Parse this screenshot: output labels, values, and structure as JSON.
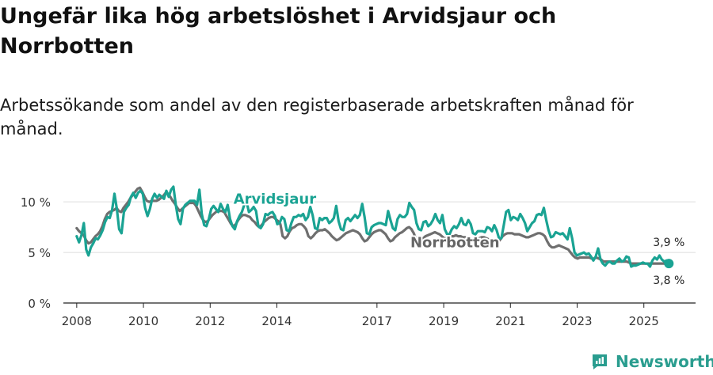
{
  "header": {
    "title": "Ungefär lika hög arbetslöshet i Arvidsjaur och Norrbotten",
    "subtitle": "Arbetssökande som andel av den registerbaserade arbetskraften månad för månad."
  },
  "brand": {
    "name": "Newsworthy",
    "color": "#2a9d8f"
  },
  "chart_data": {
    "type": "line",
    "title": "Ungefär lika hög arbetslöshet i Arvidsjaur och Norrbotten",
    "subtitle": "Arbetssökande som andel av den registerbaserade arbetskraften månad för månad.",
    "xlabel": "",
    "ylabel": "",
    "x_range": [
      2008.0,
      2025.75
    ],
    "xlim": [
      2007.6,
      2026.55
    ],
    "ylim": [
      0,
      11.5
    ],
    "y_ticks": [
      {
        "value": 0,
        "label": "0 %"
      },
      {
        "value": 5,
        "label": "5 %"
      },
      {
        "value": 10,
        "label": "10 %"
      }
    ],
    "x_ticks": [
      {
        "value": 2008,
        "label": "2008"
      },
      {
        "value": 2010,
        "label": "2010"
      },
      {
        "value": 2012,
        "label": "2012"
      },
      {
        "value": 2014,
        "label": "2014"
      },
      {
        "value": 2017,
        "label": "2017"
      },
      {
        "value": 2019,
        "label": "2019"
      },
      {
        "value": 2021,
        "label": "2021"
      },
      {
        "value": 2023,
        "label": "2023"
      },
      {
        "value": 2025,
        "label": "2025"
      }
    ],
    "grid": true,
    "legend": "inline",
    "series": [
      {
        "name": "Arvidsjaur",
        "color": "#1aa393",
        "end_label": "3,9 %",
        "values": [
          6.6,
          6.0,
          6.7,
          7.9,
          5.3,
          4.7,
          5.5,
          5.9,
          6.4,
          6.3,
          6.7,
          7.2,
          8.0,
          8.5,
          8.4,
          9.2,
          10.8,
          9.3,
          7.3,
          6.9,
          9.0,
          9.4,
          9.7,
          10.5,
          10.9,
          10.4,
          10.9,
          11.1,
          10.8,
          9.4,
          8.6,
          9.3,
          10.3,
          10.8,
          10.4,
          10.7,
          10.5,
          10.3,
          11.1,
          10.5,
          11.2,
          11.5,
          9.7,
          8.3,
          7.8,
          9.3,
          9.7,
          9.9,
          10.1,
          10.1,
          10.1,
          9.7,
          11.2,
          8.8,
          7.7,
          7.6,
          8.3,
          9.3,
          9.6,
          9.3,
          9.0,
          9.8,
          9.3,
          9.0,
          9.7,
          8.3,
          7.6,
          7.3,
          8.1,
          8.6,
          9.0,
          9.7,
          10.0,
          9.0,
          9.2,
          9.5,
          9.1,
          7.6,
          7.4,
          7.8,
          8.8,
          8.7,
          8.9,
          9.0,
          8.6,
          7.8,
          7.9,
          8.5,
          8.3,
          7.2,
          7.1,
          7.9,
          8.5,
          8.5,
          8.7,
          8.6,
          8.8,
          8.2,
          8.5,
          9.5,
          8.7,
          7.4,
          7.3,
          8.4,
          8.2,
          8.4,
          8.4,
          7.9,
          8.1,
          8.4,
          9.6,
          8.1,
          7.3,
          7.2,
          8.2,
          8.4,
          8.1,
          8.4,
          8.7,
          8.4,
          8.7,
          9.8,
          8.5,
          6.9,
          6.8,
          7.5,
          7.7,
          7.8,
          7.9,
          7.9,
          7.8,
          7.7,
          9.1,
          8.2,
          7.4,
          7.2,
          8.3,
          8.7,
          8.5,
          8.5,
          8.8,
          9.9,
          9.5,
          9.2,
          7.9,
          7.3,
          7.2,
          8.0,
          8.1,
          7.6,
          7.8,
          8.2,
          8.8,
          8.2,
          7.9,
          8.7,
          7.3,
          6.8,
          6.8,
          7.3,
          7.6,
          7.4,
          7.8,
          8.4,
          7.8,
          7.7,
          8.2,
          7.8,
          6.9,
          6.8,
          7.1,
          7.1,
          7.1,
          7.0,
          7.5,
          7.4,
          7.1,
          7.7,
          7.2,
          6.4,
          6.4,
          7.7,
          9.0,
          9.2,
          8.2,
          8.5,
          8.4,
          8.2,
          8.8,
          8.4,
          7.9,
          7.1,
          7.5,
          7.9,
          8.1,
          8.7,
          8.8,
          8.7,
          9.4,
          8.2,
          7.2,
          6.5,
          6.6,
          7.0,
          6.9,
          6.8,
          6.9,
          6.6,
          6.3,
          7.4,
          6.4,
          5.0,
          4.7,
          4.8,
          4.9,
          5.0,
          4.8,
          4.9,
          4.6,
          4.2,
          4.6,
          5.4,
          4.3,
          3.9,
          3.7,
          4.0,
          4.1,
          3.9,
          3.9,
          4.2,
          4.4,
          4.1,
          4.2,
          4.6,
          4.5,
          3.6,
          3.7,
          3.7,
          3.8,
          3.9,
          4.0,
          3.9,
          3.9,
          3.6,
          4.2,
          4.5,
          4.3,
          4.7,
          4.3,
          4.1,
          4.2,
          3.9
        ]
      },
      {
        "name": "Norrbotten",
        "color": "#6f6f6f",
        "end_label": "3,8 %",
        "values": [
          7.4,
          7.1,
          6.9,
          6.7,
          6.2,
          5.9,
          6.0,
          6.3,
          6.6,
          6.8,
          7.1,
          7.6,
          8.3,
          8.8,
          9.0,
          9.1,
          9.2,
          9.4,
          9.1,
          9.0,
          9.4,
          9.7,
          10.0,
          10.4,
          10.7,
          11.0,
          11.3,
          11.4,
          11.0,
          10.5,
          10.1,
          10.0,
          10.1,
          10.1,
          10.1,
          10.2,
          10.4,
          10.6,
          10.9,
          10.8,
          10.5,
          10.1,
          9.8,
          9.4,
          9.1,
          9.3,
          9.5,
          9.7,
          9.9,
          9.9,
          9.9,
          9.6,
          9.1,
          8.6,
          8.2,
          8.0,
          8.1,
          8.4,
          8.7,
          8.9,
          9.1,
          9.1,
          9.1,
          9.0,
          8.6,
          8.2,
          7.8,
          7.6,
          7.8,
          8.2,
          8.5,
          8.7,
          8.7,
          8.6,
          8.5,
          8.2,
          8.0,
          7.7,
          7.5,
          7.7,
          8.0,
          8.2,
          8.4,
          8.5,
          8.5,
          8.3,
          8.1,
          7.8,
          6.6,
          6.4,
          6.6,
          7.1,
          7.4,
          7.5,
          7.7,
          7.8,
          7.8,
          7.6,
          7.3,
          6.6,
          6.4,
          6.6,
          6.9,
          7.1,
          7.2,
          7.2,
          7.3,
          7.1,
          6.9,
          6.6,
          6.4,
          6.2,
          6.3,
          6.5,
          6.7,
          6.9,
          7.0,
          7.1,
          7.2,
          7.1,
          7.0,
          6.8,
          6.4,
          6.1,
          6.2,
          6.5,
          6.8,
          7.0,
          7.1,
          7.2,
          7.2,
          7.0,
          6.8,
          6.4,
          6.1,
          6.2,
          6.5,
          6.7,
          6.9,
          7.0,
          7.2,
          7.4,
          7.5,
          7.3,
          6.9,
          6.3,
          6.1,
          6.2,
          6.4,
          6.6,
          6.7,
          6.8,
          6.9,
          7.0,
          6.9,
          6.8,
          6.6,
          6.4,
          6.4,
          6.5,
          6.6,
          6.6,
          6.7,
          6.6,
          6.6,
          6.5,
          6.5,
          6.4,
          6.3,
          6.2,
          6.2,
          6.3,
          6.4,
          6.5,
          6.5,
          6.4,
          6.3,
          6.2,
          6.1,
          6.0,
          6.0,
          6.3,
          6.6,
          6.8,
          6.9,
          6.9,
          6.9,
          6.8,
          6.8,
          6.8,
          6.7,
          6.6,
          6.5,
          6.5,
          6.6,
          6.7,
          6.8,
          6.9,
          6.9,
          6.8,
          6.6,
          6.1,
          5.7,
          5.5,
          5.5,
          5.6,
          5.7,
          5.6,
          5.5,
          5.4,
          5.3,
          5.0,
          4.7,
          4.5,
          4.4,
          4.5,
          4.5,
          4.5,
          4.5,
          4.5,
          4.4,
          4.4,
          4.5,
          4.4,
          4.3,
          4.1,
          4.1,
          4.1,
          4.1,
          4.1,
          4.1,
          4.1,
          4.1,
          4.1,
          4.1,
          4.1,
          4.0,
          3.9,
          3.9,
          3.9,
          3.9,
          3.9,
          3.9,
          3.9,
          3.9,
          3.9,
          3.9,
          3.9,
          3.9,
          3.9,
          3.9,
          3.9,
          3.8,
          3.8
        ]
      }
    ]
  }
}
